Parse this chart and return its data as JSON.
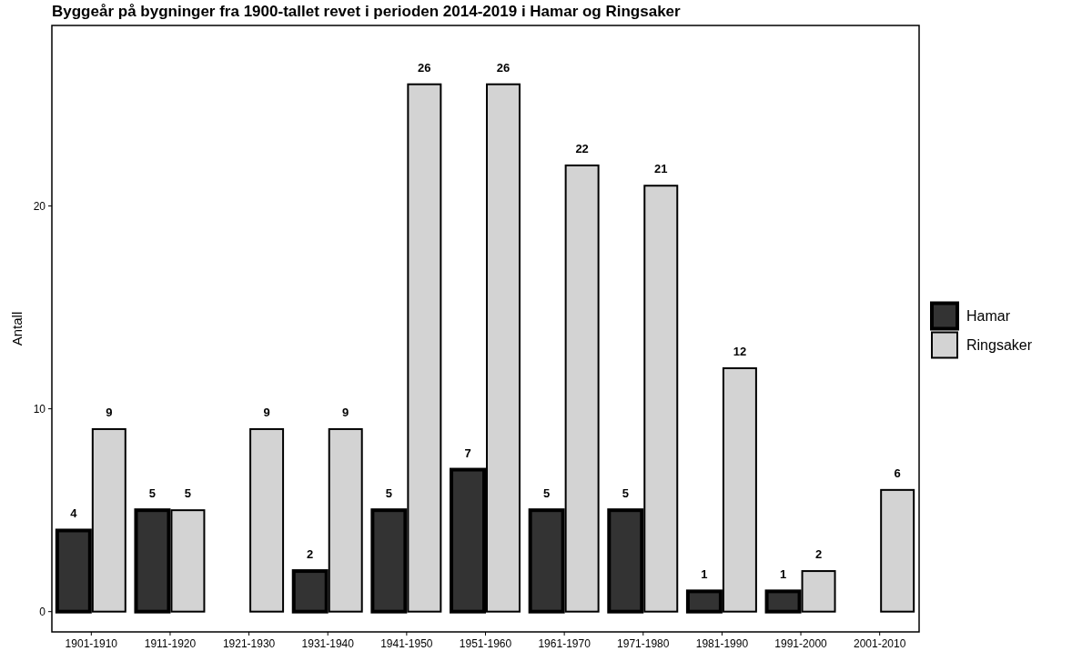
{
  "chart_data": {
    "type": "bar",
    "title": "Byggeår på bygninger fra 1900-tallet revet i perioden 2014-2019 i Hamar og Ringsaker",
    "ylabel": "Antall",
    "categories": [
      "1901-1910",
      "1911-1920",
      "1921-1930",
      "1931-1940",
      "1941-1950",
      "1951-1960",
      "1961-1970",
      "1971-1980",
      "1981-1990",
      "1991-2000",
      "2001-2010"
    ],
    "series": [
      {
        "name": "Hamar",
        "color": "#333333",
        "values": [
          4,
          5,
          null,
          2,
          5,
          7,
          5,
          5,
          1,
          1,
          null
        ]
      },
      {
        "name": "Ringsaker",
        "color": "#d3d3d3",
        "values": [
          9,
          5,
          9,
          9,
          26,
          26,
          22,
          21,
          12,
          2,
          6
        ]
      }
    ],
    "ylim": [
      -1,
      28.9
    ],
    "yticks": [
      0,
      10,
      20
    ],
    "grid": false,
    "legend": "right",
    "data_labels": true
  }
}
